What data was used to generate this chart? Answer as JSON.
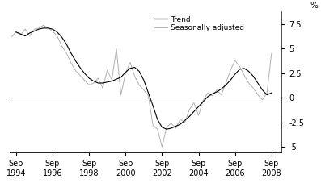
{
  "ylabel": "%",
  "xlim_start": 1994.4,
  "xlim_end": 2009.3,
  "ylim": [
    -5.6,
    8.8
  ],
  "yticks": [
    -5.0,
    -2.5,
    0.0,
    2.5,
    5.0,
    7.5
  ],
  "xtick_labels": [
    "Sep\n1994",
    "Sep\n1996",
    "Sep\n1998",
    "Sep\n2000",
    "Sep\n2002",
    "Sep\n2004",
    "Sep\n2006",
    "Sep\n2008"
  ],
  "xtick_positions": [
    1994.75,
    1996.75,
    1998.75,
    2000.75,
    2002.75,
    2004.75,
    2006.75,
    2008.75
  ],
  "trend_color": "#000000",
  "seasonal_color": "#b0b0b0",
  "legend_trend": "Trend",
  "legend_seasonal": "Seasonally adjusted",
  "background_color": "#ffffff",
  "trend_x": [
    1994.75,
    1995.0,
    1995.25,
    1995.5,
    1995.75,
    1996.0,
    1996.25,
    1996.5,
    1996.75,
    1997.0,
    1997.25,
    1997.5,
    1997.75,
    1998.0,
    1998.25,
    1998.5,
    1998.75,
    1999.0,
    1999.25,
    1999.5,
    1999.75,
    2000.0,
    2000.25,
    2000.5,
    2000.75,
    2001.0,
    2001.25,
    2001.5,
    2001.75,
    2002.0,
    2002.25,
    2002.5,
    2002.75,
    2003.0,
    2003.25,
    2003.5,
    2003.75,
    2004.0,
    2004.25,
    2004.5,
    2004.75,
    2005.0,
    2005.25,
    2005.5,
    2005.75,
    2006.0,
    2006.25,
    2006.5,
    2006.75,
    2007.0,
    2007.25,
    2007.5,
    2007.75,
    2008.0,
    2008.25,
    2008.5,
    2008.75
  ],
  "trend_y": [
    6.7,
    6.5,
    6.3,
    6.6,
    6.8,
    7.0,
    7.1,
    7.1,
    7.0,
    6.7,
    6.2,
    5.5,
    4.6,
    3.8,
    3.1,
    2.5,
    2.0,
    1.7,
    1.5,
    1.5,
    1.6,
    1.7,
    1.9,
    2.1,
    2.6,
    3.0,
    3.1,
    2.7,
    1.8,
    0.5,
    -0.8,
    -2.2,
    -3.0,
    -3.2,
    -3.1,
    -2.9,
    -2.7,
    -2.3,
    -1.9,
    -1.4,
    -0.9,
    -0.4,
    0.1,
    0.4,
    0.6,
    0.9,
    1.3,
    1.8,
    2.4,
    2.9,
    3.0,
    2.7,
    2.2,
    1.5,
    0.8,
    0.3,
    0.5
  ],
  "seasonal_x": [
    1994.5,
    1994.75,
    1995.0,
    1995.25,
    1995.5,
    1995.75,
    1996.0,
    1996.25,
    1996.5,
    1996.75,
    1997.0,
    1997.25,
    1997.5,
    1997.75,
    1998.0,
    1998.25,
    1998.5,
    1998.75,
    1999.0,
    1999.25,
    1999.5,
    1999.75,
    2000.0,
    2000.25,
    2000.5,
    2000.75,
    2001.0,
    2001.25,
    2001.5,
    2001.75,
    2002.0,
    2002.25,
    2002.5,
    2002.75,
    2003.0,
    2003.25,
    2003.5,
    2003.75,
    2004.0,
    2004.25,
    2004.5,
    2004.75,
    2005.0,
    2005.25,
    2005.5,
    2005.75,
    2006.0,
    2006.25,
    2006.5,
    2006.75,
    2007.0,
    2007.25,
    2007.5,
    2007.75,
    2008.0,
    2008.25,
    2008.5,
    2008.75
  ],
  "seasonal_y": [
    6.2,
    6.7,
    6.4,
    7.0,
    6.3,
    7.0,
    7.1,
    7.4,
    7.1,
    6.8,
    6.3,
    5.3,
    4.6,
    3.6,
    2.8,
    2.3,
    1.8,
    1.3,
    1.5,
    2.0,
    1.0,
    2.8,
    1.8,
    5.0,
    0.3,
    2.5,
    3.6,
    2.2,
    1.3,
    0.8,
    0.2,
    -2.8,
    -3.2,
    -5.0,
    -3.0,
    -2.6,
    -3.1,
    -2.2,
    -2.5,
    -1.2,
    -0.5,
    -1.8,
    -0.3,
    0.5,
    0.2,
    0.8,
    0.3,
    1.5,
    2.8,
    3.8,
    3.2,
    2.3,
    1.5,
    1.0,
    0.3,
    -0.2,
    0.5,
    4.5
  ]
}
